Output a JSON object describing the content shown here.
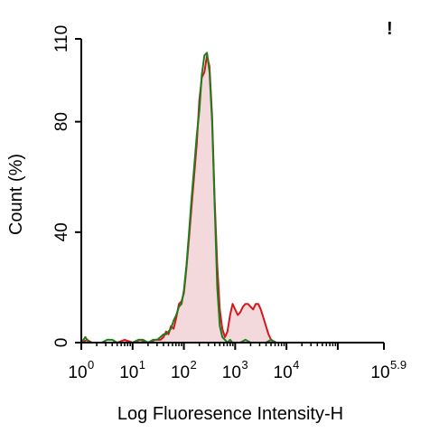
{
  "chart_data": {
    "type": "area",
    "xlabel": "Log Fluoresence Intensity-H",
    "ylabel": "Count  (%)",
    "corner_mark": "!",
    "x_scale": "log",
    "xlim": [
      1,
      794328
    ],
    "ylim": [
      0,
      110
    ],
    "y_ticks": [
      0,
      40,
      80,
      110
    ],
    "x_ticks": [
      {
        "value": 1,
        "base": "10",
        "exp": "0"
      },
      {
        "value": 10,
        "base": "10",
        "exp": "1"
      },
      {
        "value": 100,
        "base": "10",
        "exp": "2"
      },
      {
        "value": 1000,
        "base": "10",
        "exp": "3"
      },
      {
        "value": 10000,
        "base": "10",
        "exp": "4"
      },
      {
        "value": 794328,
        "base": "10",
        "exp": "5.9"
      }
    ],
    "series": [
      {
        "color": "#d6161b",
        "fill": "#f3d9dc",
        "points": [
          [
            1.0,
            0
          ],
          [
            1.3,
            1
          ],
          [
            1.6,
            0
          ],
          [
            2.0,
            0
          ],
          [
            3.0,
            0
          ],
          [
            4.0,
            0
          ],
          [
            5.0,
            0
          ],
          [
            7.0,
            1
          ],
          [
            10,
            0
          ],
          [
            14,
            1
          ],
          [
            20,
            0
          ],
          [
            28,
            1
          ],
          [
            35,
            1
          ],
          [
            40,
            2
          ],
          [
            45,
            4
          ],
          [
            50,
            3
          ],
          [
            56,
            6
          ],
          [
            63,
            5
          ],
          [
            71,
            9
          ],
          [
            80,
            14
          ],
          [
            90,
            15
          ],
          [
            100,
            18
          ],
          [
            112,
            27
          ],
          [
            126,
            38
          ],
          [
            141,
            49
          ],
          [
            158,
            60
          ],
          [
            178,
            72
          ],
          [
            200,
            88
          ],
          [
            224,
            96
          ],
          [
            251,
            98
          ],
          [
            282,
            104
          ],
          [
            316,
            100
          ],
          [
            355,
            82
          ],
          [
            398,
            52
          ],
          [
            447,
            28
          ],
          [
            501,
            12
          ],
          [
            562,
            5
          ],
          [
            631,
            2
          ],
          [
            708,
            4
          ],
          [
            794,
            10
          ],
          [
            891,
            14
          ],
          [
            1000,
            12
          ],
          [
            1122,
            10
          ],
          [
            1259,
            11
          ],
          [
            1413,
            13
          ],
          [
            1585,
            14
          ],
          [
            1778,
            14
          ],
          [
            1995,
            13
          ],
          [
            2239,
            12
          ],
          [
            2512,
            14
          ],
          [
            2818,
            14
          ],
          [
            3162,
            12
          ],
          [
            3548,
            9
          ],
          [
            3981,
            6
          ],
          [
            4467,
            3
          ],
          [
            5012,
            1
          ],
          [
            5623,
            0
          ],
          [
            7943,
            0
          ],
          [
            15849,
            0
          ],
          [
            50119,
            0
          ],
          [
            199526,
            0
          ],
          [
            794328,
            0
          ]
        ]
      },
      {
        "color": "#1e7d1e",
        "fill": "none",
        "points": [
          [
            1.0,
            0
          ],
          [
            1.2,
            2
          ],
          [
            1.4,
            0
          ],
          [
            1.8,
            0
          ],
          [
            2.5,
            0
          ],
          [
            3.2,
            1
          ],
          [
            4.0,
            1
          ],
          [
            5.0,
            0
          ],
          [
            7.0,
            0
          ],
          [
            10,
            0
          ],
          [
            13,
            1
          ],
          [
            16,
            1
          ],
          [
            20,
            0
          ],
          [
            25,
            1
          ],
          [
            30,
            1
          ],
          [
            35,
            2
          ],
          [
            40,
            3
          ],
          [
            45,
            3
          ],
          [
            50,
            4
          ],
          [
            56,
            5
          ],
          [
            63,
            8
          ],
          [
            71,
            10
          ],
          [
            80,
            13
          ],
          [
            90,
            14
          ],
          [
            100,
            19
          ],
          [
            112,
            28
          ],
          [
            126,
            40
          ],
          [
            141,
            52
          ],
          [
            158,
            63
          ],
          [
            178,
            75
          ],
          [
            200,
            84
          ],
          [
            224,
            97
          ],
          [
            251,
            104
          ],
          [
            282,
            105
          ],
          [
            316,
            98
          ],
          [
            355,
            80
          ],
          [
            398,
            50
          ],
          [
            447,
            20
          ],
          [
            501,
            6
          ],
          [
            562,
            2
          ],
          [
            631,
            1
          ],
          [
            708,
            0
          ],
          [
            794,
            1
          ],
          [
            891,
            0
          ],
          [
            1000,
            0
          ],
          [
            1259,
            0
          ],
          [
            1585,
            1
          ],
          [
            1995,
            0
          ],
          [
            2512,
            0
          ],
          [
            3162,
            0
          ],
          [
            3981,
            0
          ],
          [
            5012,
            1
          ],
          [
            6310,
            0
          ],
          [
            10000,
            0
          ],
          [
            31623,
            0
          ],
          [
            100000,
            0
          ],
          [
            398107,
            0
          ],
          [
            794328,
            0
          ]
        ]
      }
    ]
  }
}
